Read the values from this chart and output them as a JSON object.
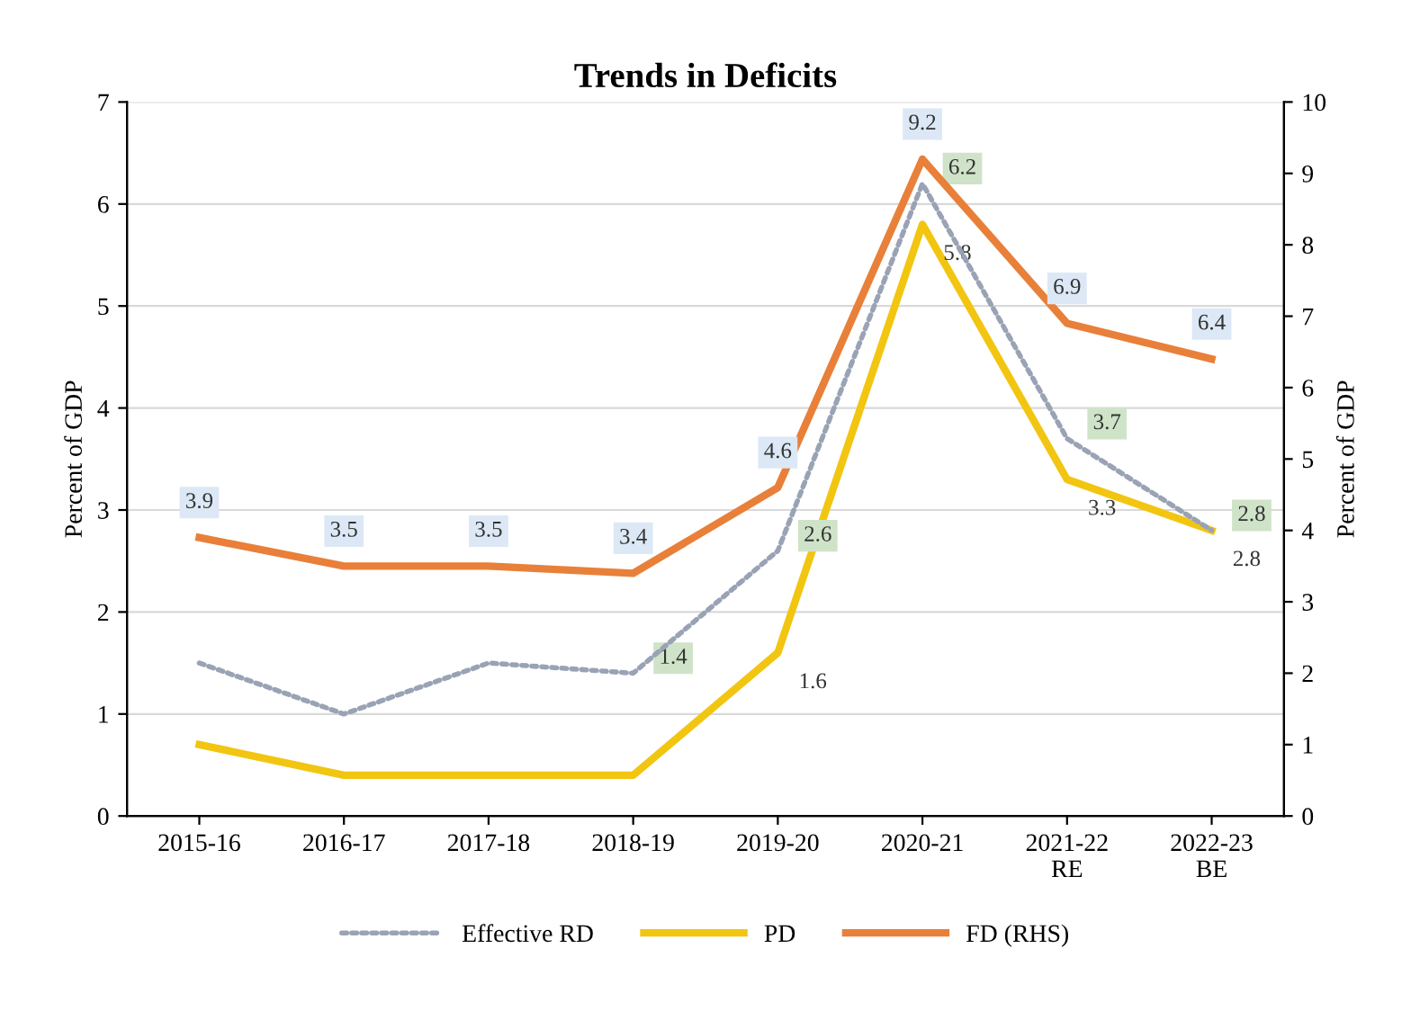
{
  "chart_data": {
    "type": "line",
    "title": "Trends in Deficits",
    "categories": [
      "2015-16",
      "2016-17",
      "2017-18",
      "2018-19",
      "2019-20",
      "2020-21",
      "2021-22\nRE",
      "2022-23\nBE"
    ],
    "ylabel": "Percent of GDP",
    "y2label": "Percent of GDP",
    "ylim": [
      0,
      7
    ],
    "yticks": [
      0,
      1,
      2,
      3,
      4,
      5,
      6,
      7
    ],
    "y2lim": [
      0,
      10
    ],
    "y2ticks": [
      0,
      1,
      2,
      3,
      4,
      5,
      6,
      7,
      8,
      9,
      10
    ],
    "grid": "y",
    "legend": "bottom",
    "marker": "none",
    "series": [
      {
        "name": "Effective RD",
        "color": "#9aa3b5",
        "line_style": "dotted",
        "values": [
          1.5,
          1.0,
          1.5,
          1.4,
          2.6,
          6.2,
          3.7,
          2.8
        ],
        "value_labels": [
          null,
          null,
          null,
          "1.4",
          "2.6",
          "6.2",
          "3.7",
          "2.8"
        ]
      },
      {
        "name": "PD",
        "color": "#f2c511",
        "line_style": "solid",
        "values": [
          0.7,
          0.4,
          0.4,
          0.4,
          1.6,
          5.8,
          3.3,
          2.8
        ],
        "value_labels": [
          null,
          null,
          null,
          null,
          "1.6",
          "5.8",
          "3.3",
          "2.8"
        ]
      },
      {
        "name": "FD (RHS)",
        "color": "#e8803a",
        "line_style": "solid",
        "axis": "y2",
        "values": [
          3.9,
          3.5,
          3.5,
          3.4,
          4.6,
          9.2,
          6.9,
          6.4
        ],
        "value_labels": [
          "3.9",
          "3.5",
          "3.5",
          "3.4",
          "4.6",
          "9.2",
          "6.9",
          "6.4"
        ]
      }
    ]
  }
}
